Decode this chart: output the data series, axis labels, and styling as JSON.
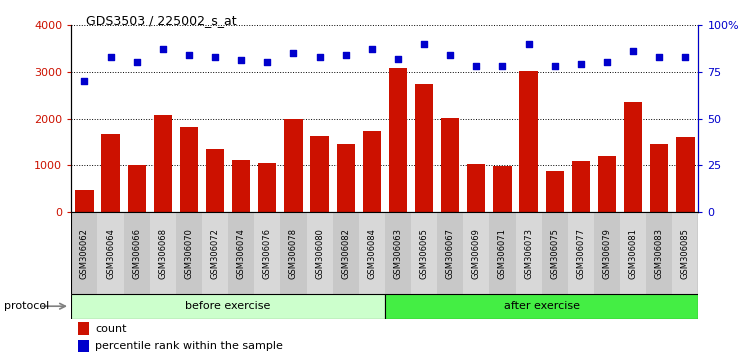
{
  "title": "GDS3503 / 225002_s_at",
  "categories": [
    "GSM306062",
    "GSM306064",
    "GSM306066",
    "GSM306068",
    "GSM306070",
    "GSM306072",
    "GSM306074",
    "GSM306076",
    "GSM306078",
    "GSM306080",
    "GSM306082",
    "GSM306084",
    "GSM306063",
    "GSM306065",
    "GSM306067",
    "GSM306069",
    "GSM306071",
    "GSM306073",
    "GSM306075",
    "GSM306077",
    "GSM306079",
    "GSM306081",
    "GSM306083",
    "GSM306085"
  ],
  "counts": [
    480,
    1680,
    1020,
    2080,
    1830,
    1350,
    1120,
    1050,
    2000,
    1620,
    1450,
    1730,
    3080,
    2730,
    2010,
    1030,
    980,
    3020,
    880,
    1090,
    1210,
    2350,
    1460,
    1610
  ],
  "percentile": [
    70,
    83,
    80,
    87,
    84,
    83,
    81,
    80,
    85,
    83,
    84,
    87,
    82,
    90,
    84,
    78,
    78,
    90,
    78,
    79,
    80,
    86,
    83,
    83
  ],
  "before_count": 12,
  "after_count": 12,
  "group_labels": [
    "before exercise",
    "after exercise"
  ],
  "before_color": "#ccffcc",
  "after_color": "#44ee44",
  "bar_color": "#cc1100",
  "dot_color": "#0000cc",
  "ylim_left": [
    0,
    4000
  ],
  "ylim_right": [
    0,
    100
  ],
  "yticks_left": [
    0,
    1000,
    2000,
    3000,
    4000
  ],
  "yticks_right": [
    0,
    25,
    50,
    75,
    100
  ],
  "ytick_labels_right": [
    "0",
    "25",
    "50",
    "75",
    "100%"
  ],
  "legend_count_label": "count",
  "legend_pct_label": "percentile rank within the sample",
  "protocol_label": "protocol",
  "bg_color": "#ffffff",
  "tick_band_colors": [
    "#c8c8c8",
    "#d8d8d8"
  ]
}
